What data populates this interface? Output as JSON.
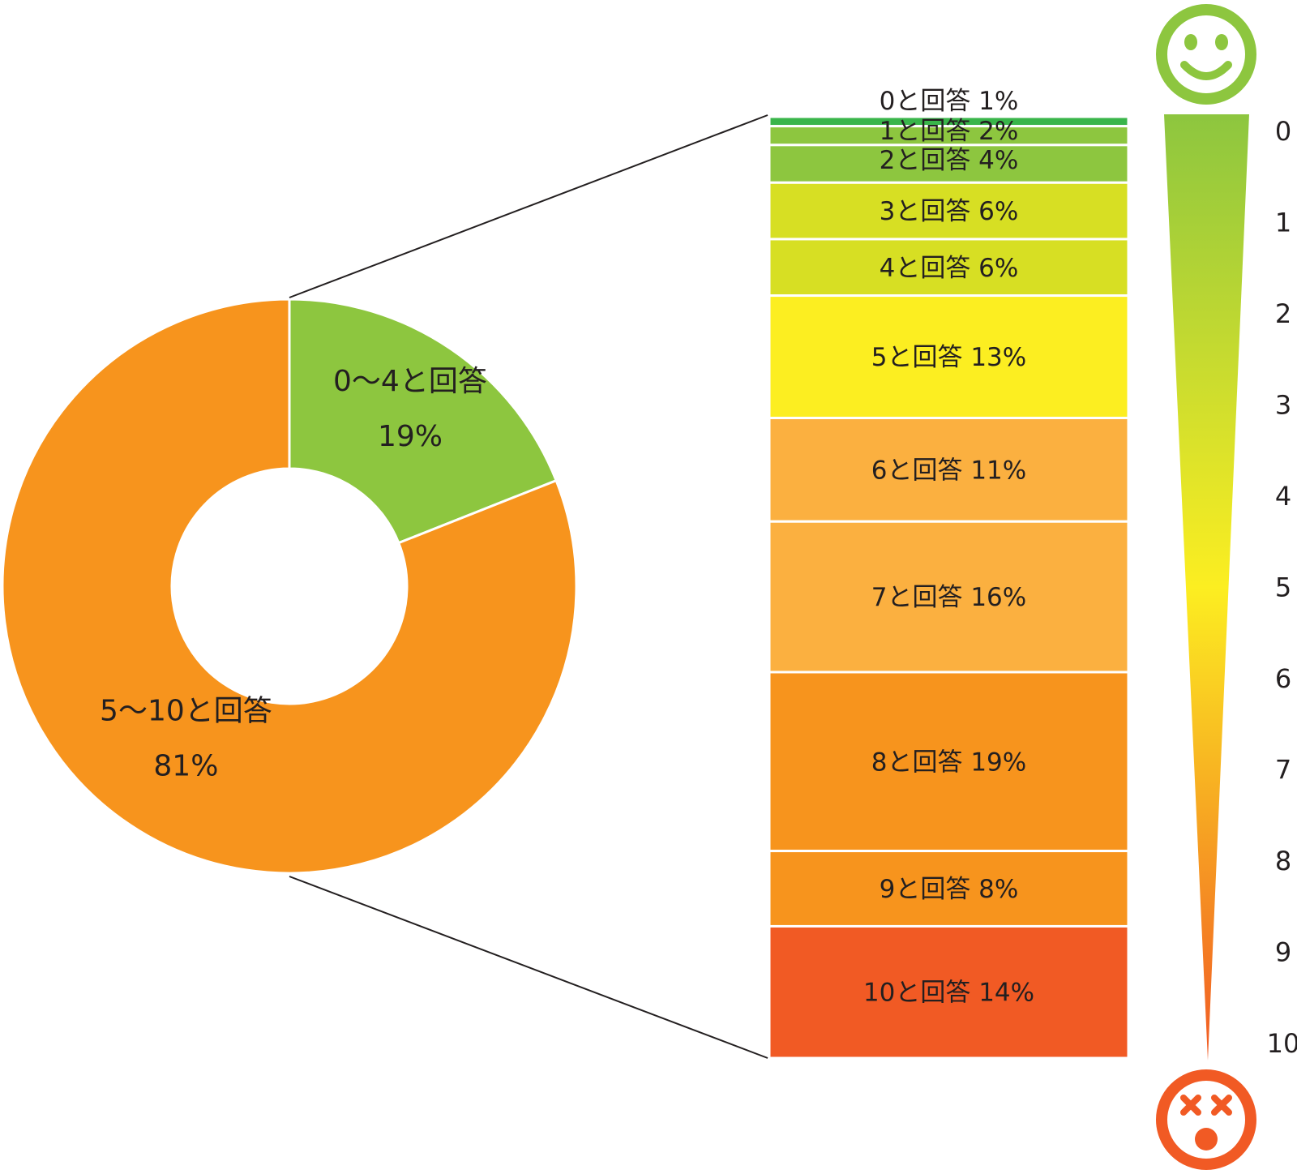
{
  "chart_data": [
    {
      "type": "pie",
      "style": "donut",
      "slices": [
        {
          "label": "0〜4と回答",
          "value": 19,
          "value_text": "19%",
          "color": "#8dc63f"
        },
        {
          "label": "5〜10と回答",
          "value": 81,
          "value_text": "81%",
          "color": "#f7941d"
        }
      ]
    },
    {
      "type": "bar",
      "orientation": "stacked-vertical",
      "categories": [
        "0",
        "1",
        "2",
        "3",
        "4",
        "5",
        "6",
        "7",
        "8",
        "9",
        "10"
      ],
      "values": [
        1,
        2,
        4,
        6,
        6,
        13,
        11,
        16,
        19,
        8,
        14
      ],
      "labels": [
        "0と回答 1%",
        "1と回答 2%",
        "2と回答 4%",
        "3と回答 6%",
        "4と回答 6%",
        "5と回答 13%",
        "6と回答 11%",
        "7と回答 16%",
        "8と回答 19%",
        "9と回答 8%",
        "10と回答 14%"
      ],
      "colors": [
        "#39b54a",
        "#8dc63f",
        "#8dc63f",
        "#d7df23",
        "#d7df23",
        "#fcee21",
        "#fbb040",
        "#fbb040",
        "#f7941d",
        "#f7941d",
        "#f15a24"
      ]
    },
    {
      "type": "scale",
      "ticks": [
        "0",
        "1",
        "2",
        "3",
        "4",
        "5",
        "6",
        "7",
        "8",
        "9",
        "10"
      ],
      "gradient": [
        "#8dc63f",
        "#fcee21",
        "#f15a24"
      ],
      "icons": {
        "top": "smiley-face-icon",
        "bottom": "dizzy-face-icon"
      },
      "icon_colors": {
        "top": "#8dc63f",
        "bottom": "#f15a24"
      }
    }
  ]
}
